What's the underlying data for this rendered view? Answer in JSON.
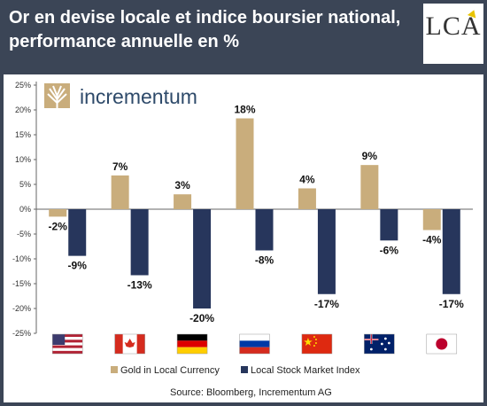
{
  "header": {
    "title_line1": "Or en devise locale et indice boursier national,",
    "title_line2": "performance annuelle en %",
    "logo_text": "LCA"
  },
  "brand": {
    "name": "incrementum",
    "icon": "tree-logo-icon"
  },
  "colors": {
    "background": "#3b4556",
    "gold": "#c9ad7c",
    "stock": "#27365c"
  },
  "chart_data": {
    "type": "bar",
    "categories": [
      "United States",
      "Canada",
      "Germany",
      "Russia",
      "China",
      "Australia",
      "Japan"
    ],
    "category_icons": [
      "flag-us-icon",
      "flag-canada-icon",
      "flag-germany-icon",
      "flag-russia-icon",
      "flag-china-icon",
      "flag-australia-icon",
      "flag-japan-icon"
    ],
    "series": [
      {
        "name": "Gold in Local Currency",
        "color": "#c9ad7c",
        "values": [
          -1.5,
          6.8,
          3.0,
          18.3,
          4.2,
          8.9,
          -4.2
        ],
        "labels": [
          "-2%",
          "7%",
          "3%",
          "18%",
          "4%",
          "9%",
          "-4%"
        ]
      },
      {
        "name": "Local Stock Market Index",
        "color": "#27365c",
        "values": [
          -9.4,
          -13.3,
          -20.0,
          -8.3,
          -17.1,
          -6.3,
          -17.1
        ],
        "labels": [
          "-9%",
          "-13%",
          "-20%",
          "-8%",
          "-17%",
          "-6%",
          "-17%"
        ]
      }
    ],
    "ylim": [
      -25,
      25
    ],
    "yticks": [
      25,
      20,
      15,
      10,
      5,
      0,
      -5,
      -10,
      -15,
      -20,
      -25
    ],
    "ytick_labels": [
      "25%",
      "20%",
      "15%",
      "10%",
      "5%",
      "0%",
      "-5%",
      "-10%",
      "-15%",
      "-20%",
      "-25%"
    ],
    "grid": false,
    "legend_position": "bottom",
    "source": "Source: Bloomberg, Incrementum AG"
  }
}
